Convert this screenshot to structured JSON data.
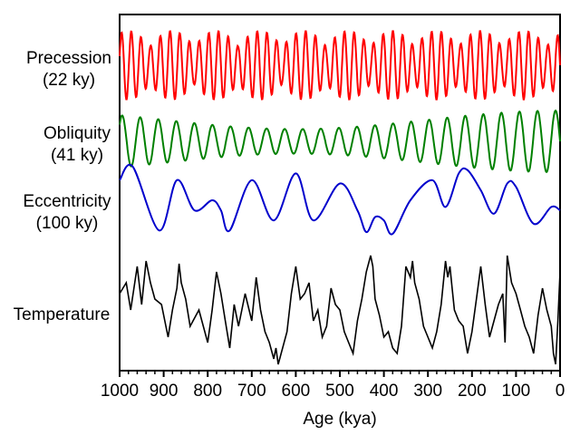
{
  "chart_data": {
    "type": "line",
    "title": "",
    "xlabel": "Age (kya)",
    "ylabel": "",
    "xlim": [
      1000,
      0
    ],
    "x_reversed": true,
    "xticks": [
      "1000",
      "900",
      "800",
      "700",
      "600",
      "500",
      "400",
      "300",
      "200",
      "100",
      "0"
    ],
    "grid": false,
    "legend": "none",
    "series": [
      {
        "name": "Precession (22 ky)",
        "label_lines": [
          "Precession",
          "(22 ky)"
        ],
        "color": "#ff0000",
        "period_ky": 22,
        "description": "quasi-periodic oscillation with amplitude modulated by eccentricity"
      },
      {
        "name": "Obliquity (41 ky)",
        "label_lines": [
          "Obliquity",
          "(41 ky)"
        ],
        "color": "#008000",
        "period_ky": 41
      },
      {
        "name": "Eccentricity (100 ky)",
        "label_lines": [
          "Eccentricity",
          "(100 ky)"
        ],
        "color": "#0000cc",
        "period_ky": 100,
        "x": [
          1000,
          970,
          910,
          870,
          830,
          790,
          770,
          750,
          700,
          650,
          600,
          560,
          500,
          460,
          440,
          420,
          400,
          380,
          340,
          290,
          260,
          230,
          210,
          180,
          150,
          120,
          100,
          60,
          20,
          0
        ],
        "y": [
          0.6,
          1.0,
          -0.9,
          0.6,
          -0.3,
          0.0,
          -0.3,
          -0.9,
          0.6,
          -0.6,
          0.8,
          -0.6,
          0.5,
          -0.3,
          -0.95,
          -0.5,
          -0.6,
          -1.0,
          0.0,
          0.6,
          -0.2,
          0.8,
          0.9,
          0.3,
          -0.4,
          0.5,
          0.4,
          -0.7,
          -0.2,
          -0.3
        ]
      },
      {
        "name": "Temperature",
        "label_lines": [
          "Temperature"
        ],
        "color": "#000000",
        "x": [
          1000,
          985,
          975,
          960,
          950,
          940,
          930,
          920,
          905,
          890,
          880,
          870,
          865,
          860,
          850,
          840,
          820,
          800,
          790,
          780,
          770,
          760,
          750,
          740,
          730,
          715,
          700,
          690,
          680,
          670,
          660,
          650,
          645,
          640,
          620,
          610,
          600,
          590,
          580,
          570,
          560,
          550,
          540,
          530,
          520,
          510,
          500,
          490,
          480,
          470,
          460,
          450,
          440,
          430,
          425,
          420,
          410,
          400,
          390,
          380,
          370,
          360,
          350,
          340,
          335,
          330,
          320,
          310,
          300,
          290,
          280,
          270,
          260,
          255,
          250,
          245,
          240,
          230,
          220,
          210,
          200,
          190,
          180,
          170,
          160,
          150,
          140,
          130,
          125,
          120,
          110,
          100,
          90,
          80,
          70,
          60,
          50,
          40,
          30,
          20,
          15,
          10,
          5,
          0
        ],
        "y": [
          0.3,
          0.5,
          0.0,
          0.8,
          0.1,
          0.9,
          0.5,
          0.2,
          0.1,
          -0.5,
          0.0,
          0.4,
          0.85,
          0.5,
          0.2,
          -0.3,
          0.0,
          -0.6,
          0.0,
          0.7,
          0.3,
          -0.2,
          -0.7,
          0.1,
          -0.3,
          0.3,
          -0.2,
          0.6,
          0.0,
          -0.4,
          -0.6,
          -0.9,
          -0.7,
          -1.0,
          -0.4,
          0.3,
          0.8,
          0.2,
          0.3,
          0.5,
          -0.2,
          0.0,
          -0.5,
          -0.3,
          0.4,
          0.1,
          0.0,
          -0.4,
          -0.6,
          -0.8,
          -0.2,
          0.2,
          0.7,
          1.0,
          0.8,
          0.2,
          -0.1,
          -0.5,
          -0.4,
          -0.7,
          -0.8,
          -0.3,
          0.8,
          0.6,
          0.9,
          0.5,
          0.2,
          -0.3,
          -0.5,
          -0.7,
          -0.4,
          0.1,
          0.9,
          0.6,
          0.8,
          0.4,
          0.0,
          -0.2,
          -0.3,
          -0.8,
          -0.4,
          0.2,
          0.8,
          0.1,
          -0.5,
          -0.2,
          0.1,
          0.3,
          -0.6,
          1.0,
          0.5,
          0.3,
          0.0,
          -0.3,
          -0.5,
          -0.8,
          -0.1,
          0.4,
          0.0,
          -0.3,
          -0.8,
          -1.0,
          -0.2,
          0.7
        ]
      }
    ]
  }
}
